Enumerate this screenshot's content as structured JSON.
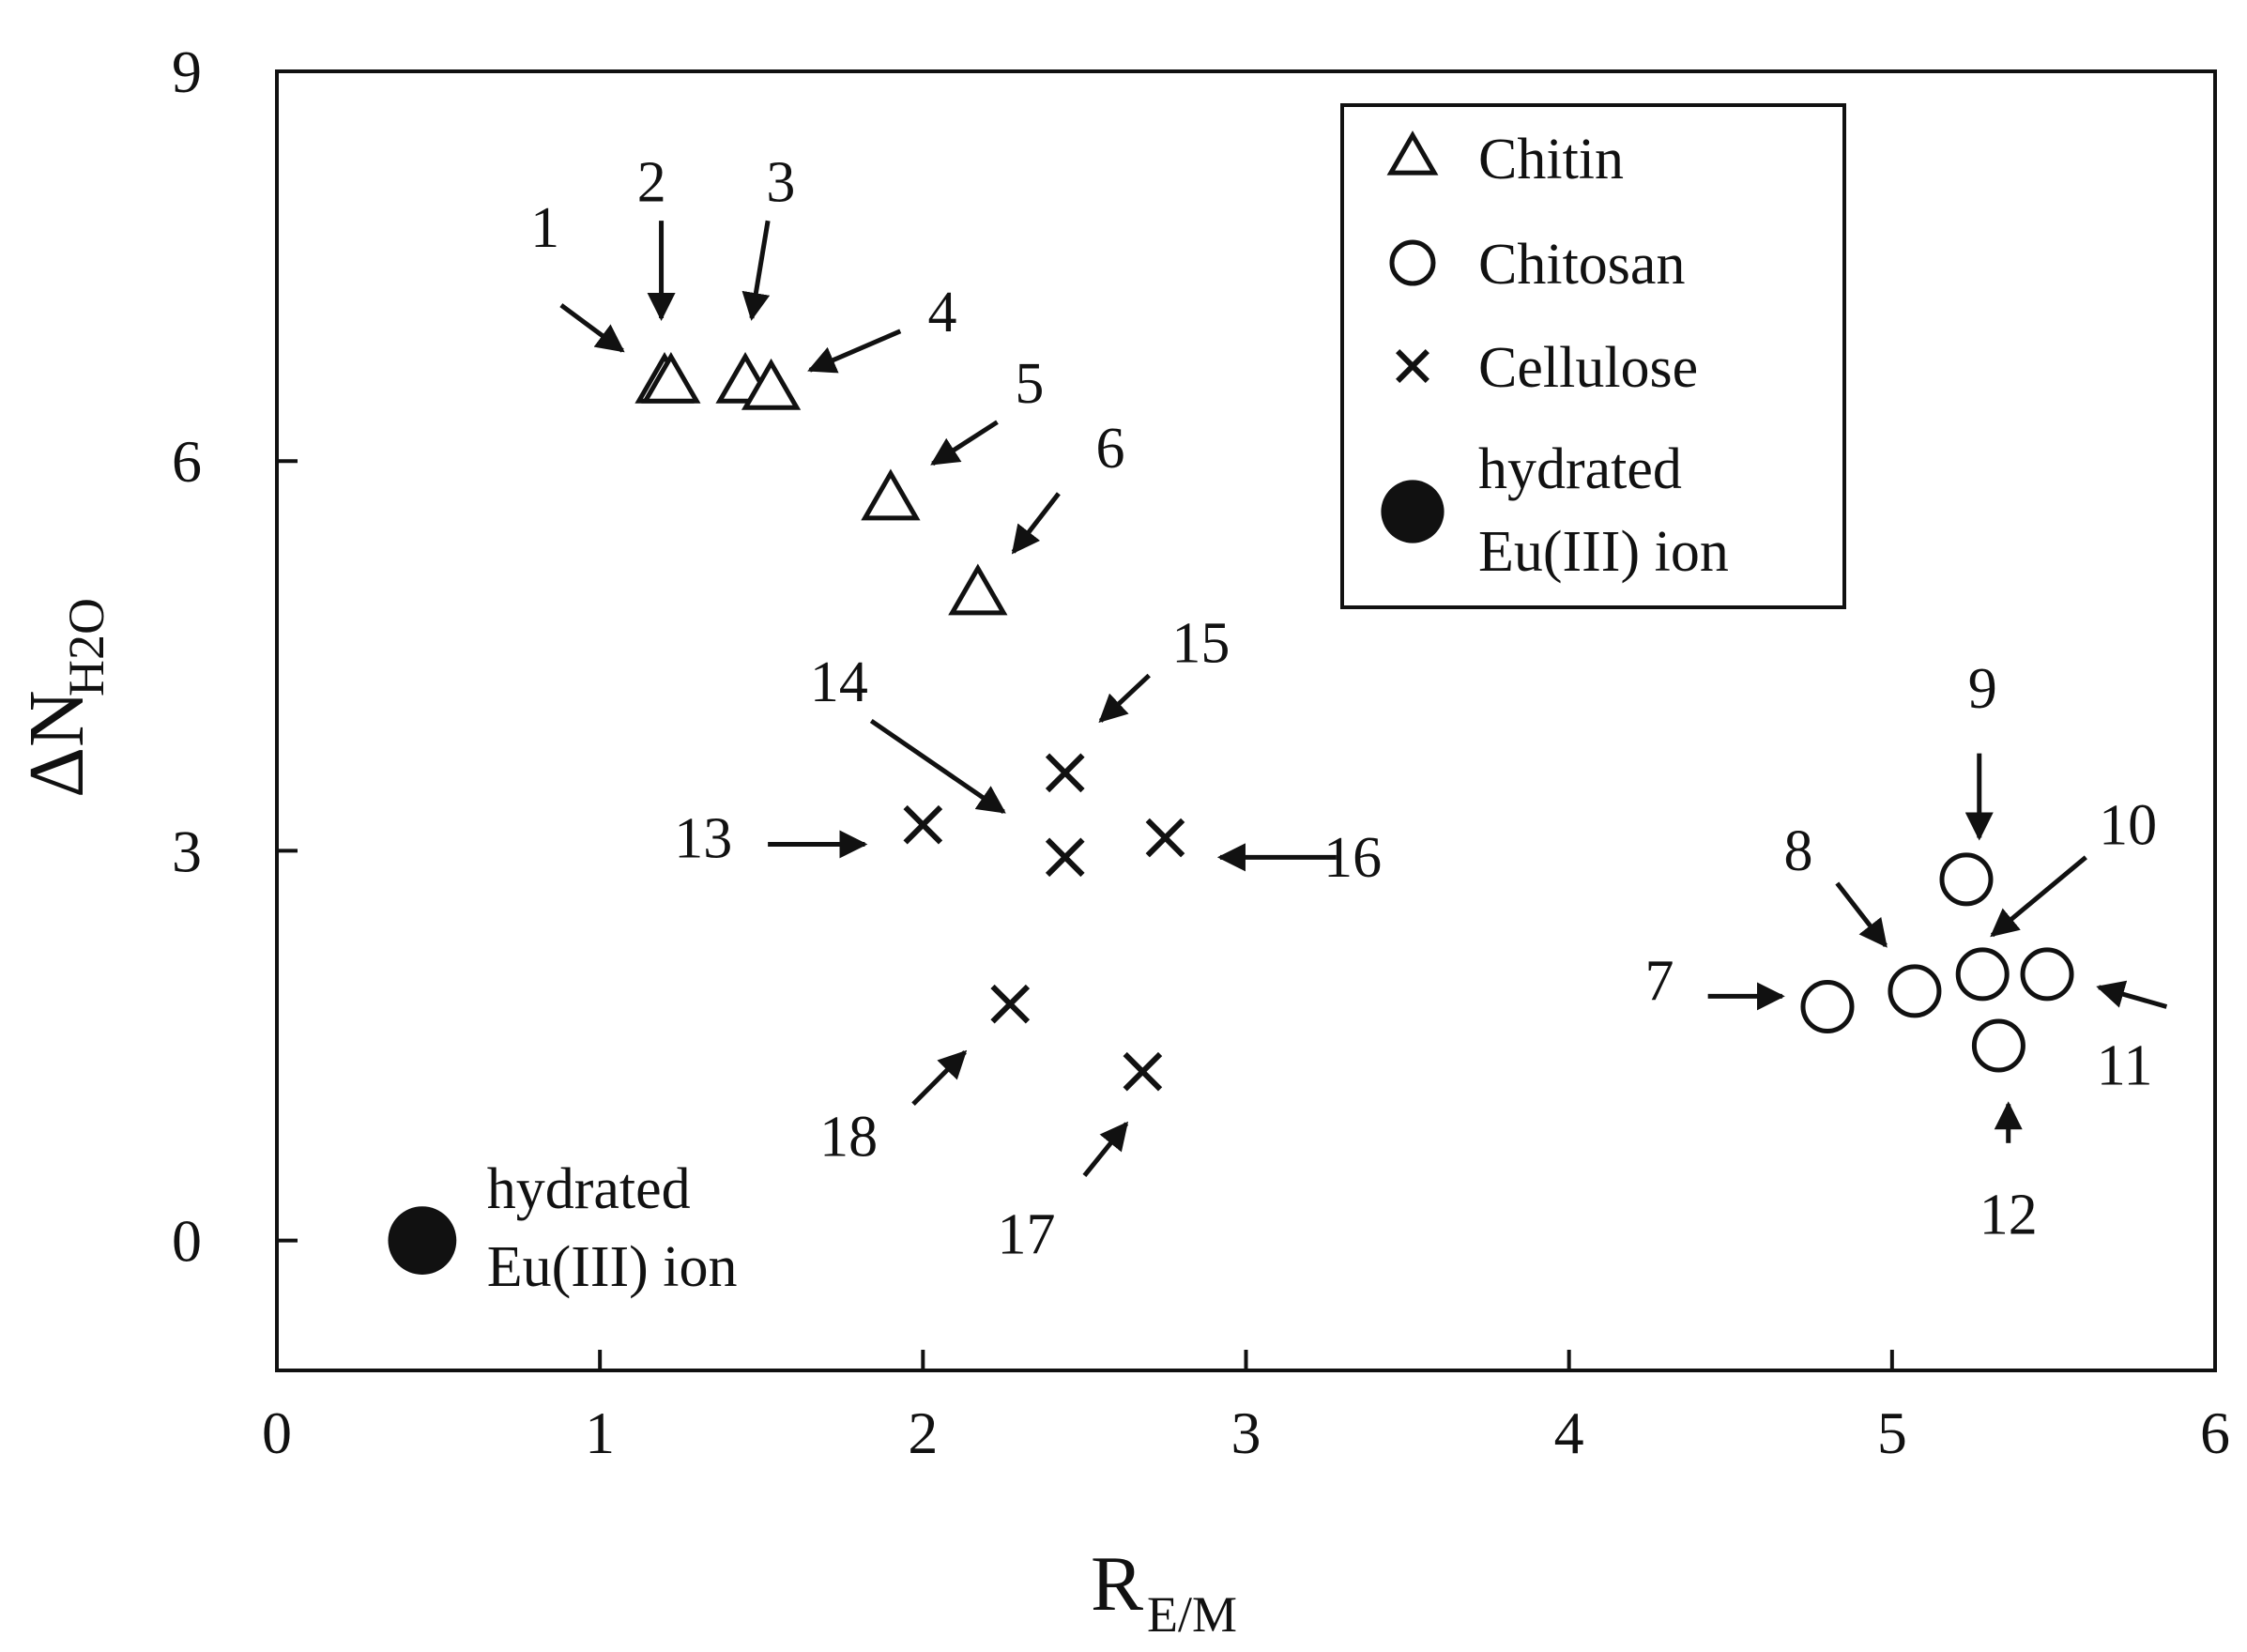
{
  "chart_data": {
    "type": "scatter",
    "xlabel": {
      "main": "R",
      "sub": "E/M"
    },
    "ylabel": {
      "main": "ΔN",
      "sub": "H2O"
    },
    "xlim": [
      0,
      6
    ],
    "ylim": [
      -1,
      9
    ],
    "x_ticks": [
      0,
      1,
      2,
      3,
      4,
      5,
      6
    ],
    "y_ticks": [
      0,
      3,
      6,
      9
    ],
    "grid": false,
    "legend_position": "top-right",
    "legend": [
      {
        "label": "Chitin",
        "marker": "triangle"
      },
      {
        "label": "Chitosan",
        "marker": "circle"
      },
      {
        "label": "Cellulose",
        "marker": "cross"
      },
      {
        "label": "hydrated Eu(III) ion",
        "lines": [
          "hydrated",
          "Eu(III) ion"
        ],
        "marker": "filled-circle"
      }
    ],
    "series": [
      {
        "name": "Chitin",
        "marker": "triangle",
        "points": [
          {
            "id": "1",
            "x": 1.2,
            "y": 6.6
          },
          {
            "id": "2",
            "x": 1.22,
            "y": 6.6
          },
          {
            "id": "3",
            "x": 1.45,
            "y": 6.6
          },
          {
            "id": "4",
            "x": 1.53,
            "y": 6.55
          },
          {
            "id": "5",
            "x": 1.9,
            "y": 5.7
          },
          {
            "id": "6",
            "x": 2.17,
            "y": 4.97
          }
        ]
      },
      {
        "name": "Chitosan",
        "marker": "circle",
        "points": [
          {
            "id": "7",
            "x": 4.8,
            "y": 1.8
          },
          {
            "id": "8",
            "x": 5.07,
            "y": 1.92
          },
          {
            "id": "9",
            "x": 5.23,
            "y": 2.78
          },
          {
            "id": "10",
            "x": 5.28,
            "y": 2.05
          },
          {
            "id": "11",
            "x": 5.48,
            "y": 2.05
          },
          {
            "id": "12",
            "x": 5.33,
            "y": 1.5
          }
        ]
      },
      {
        "name": "Cellulose",
        "marker": "cross",
        "points": [
          {
            "id": "13",
            "x": 2.0,
            "y": 3.2
          },
          {
            "id": "14",
            "x": 2.44,
            "y": 2.95
          },
          {
            "id": "15",
            "x": 2.44,
            "y": 3.6
          },
          {
            "id": "16",
            "x": 2.75,
            "y": 3.1
          },
          {
            "id": "17",
            "x": 2.68,
            "y": 1.3
          },
          {
            "id": "18",
            "x": 2.27,
            "y": 1.82
          }
        ]
      },
      {
        "name": "hydrated Eu(III) ion",
        "marker": "filled-circle",
        "points": [
          {
            "id": "",
            "x": 0.45,
            "y": 0.0
          }
        ]
      }
    ],
    "point_labels": [
      {
        "text": "1",
        "x": 0.83,
        "y": 7.65,
        "arrow_from": [
          0.88,
          7.2
        ],
        "arrow_to": [
          1.07,
          6.85
        ]
      },
      {
        "text": "2",
        "x": 1.16,
        "y": 8.0,
        "arrow_from": [
          1.19,
          7.85
        ],
        "arrow_to": [
          1.19,
          7.1
        ]
      },
      {
        "text": "3",
        "x": 1.56,
        "y": 8.0,
        "arrow_from": [
          1.52,
          7.85
        ],
        "arrow_to": [
          1.47,
          7.1
        ]
      },
      {
        "text": "4",
        "x": 2.06,
        "y": 7.0,
        "arrow_from": [
          1.93,
          7.0
        ],
        "arrow_to": [
          1.65,
          6.7
        ]
      },
      {
        "text": "5",
        "x": 2.33,
        "y": 6.45,
        "arrow_from": [
          2.23,
          6.3
        ],
        "arrow_to": [
          2.03,
          5.98
        ]
      },
      {
        "text": "6",
        "x": 2.58,
        "y": 5.95,
        "arrow_from": [
          2.42,
          5.75
        ],
        "arrow_to": [
          2.28,
          5.3
        ]
      },
      {
        "text": "7",
        "x": 4.28,
        "y": 1.85,
        "arrow_from": [
          4.43,
          1.88
        ],
        "arrow_to": [
          4.66,
          1.88
        ]
      },
      {
        "text": "8",
        "x": 4.71,
        "y": 2.85,
        "arrow_from": [
          4.83,
          2.75
        ],
        "arrow_to": [
          4.98,
          2.27
        ]
      },
      {
        "text": "9",
        "x": 5.28,
        "y": 4.1,
        "arrow_from": [
          5.27,
          3.75
        ],
        "arrow_to": [
          5.27,
          3.1
        ]
      },
      {
        "text": "10",
        "x": 5.73,
        "y": 3.05,
        "arrow_from": [
          5.6,
          2.95
        ],
        "arrow_to": [
          5.31,
          2.35
        ]
      },
      {
        "text": "11",
        "x": 5.72,
        "y": 1.2,
        "arrow_from": [
          5.85,
          1.8
        ],
        "arrow_to": [
          5.64,
          1.95
        ]
      },
      {
        "text": "12",
        "x": 5.36,
        "y": 0.05,
        "arrow_from": [
          5.36,
          0.75
        ],
        "arrow_to": [
          5.36,
          1.05
        ]
      },
      {
        "text": "13",
        "x": 1.32,
        "y": 2.95,
        "arrow_from": [
          1.52,
          3.05
        ],
        "arrow_to": [
          1.82,
          3.05
        ]
      },
      {
        "text": "14",
        "x": 1.74,
        "y": 4.15,
        "arrow_from": [
          1.84,
          4.0
        ],
        "arrow_to": [
          2.25,
          3.3
        ]
      },
      {
        "text": "15",
        "x": 2.86,
        "y": 4.45,
        "arrow_from": [
          2.7,
          4.35
        ],
        "arrow_to": [
          2.55,
          4.0
        ]
      },
      {
        "text": "16",
        "x": 3.33,
        "y": 2.8,
        "arrow_from": [
          3.28,
          2.95
        ],
        "arrow_to": [
          2.92,
          2.95
        ]
      },
      {
        "text": "17",
        "x": 2.32,
        "y": -0.1,
        "arrow_from": [
          2.5,
          0.5
        ],
        "arrow_to": [
          2.63,
          0.9
        ]
      },
      {
        "text": "18",
        "x": 1.77,
        "y": 0.65,
        "arrow_from": [
          1.97,
          1.05
        ],
        "arrow_to": [
          2.13,
          1.45
        ]
      }
    ],
    "annotations": [
      {
        "text": "hydrated",
        "x": 0.65,
        "y": 0.25
      },
      {
        "text": "Eu(III) ion",
        "x": 0.65,
        "y": -0.35
      }
    ]
  }
}
